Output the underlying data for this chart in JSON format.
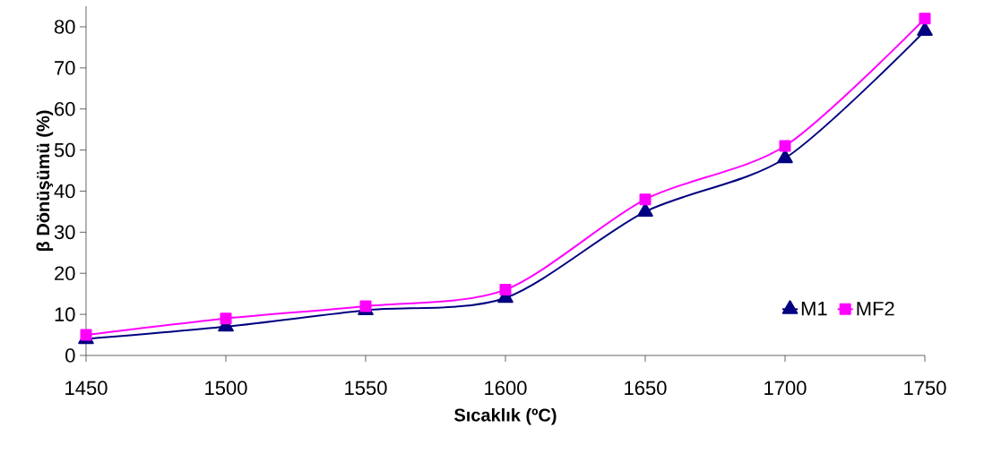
{
  "chart_data": {
    "type": "line",
    "xlabel": "Sıcaklık (ºC)",
    "ylabel": "β Dönüşümü (%)",
    "x": [
      1450,
      1500,
      1550,
      1600,
      1650,
      1700,
      1750
    ],
    "series": [
      {
        "name": "M1",
        "color": "#000080",
        "marker": "triangle",
        "values": [
          4,
          7,
          11,
          14,
          35,
          48,
          79
        ]
      },
      {
        "name": "MF2",
        "color": "#ff00ff",
        "marker": "square",
        "values": [
          5,
          9,
          12,
          16,
          38,
          51,
          82
        ]
      }
    ],
    "xlim": [
      1450,
      1750
    ],
    "xticks": [
      1450,
      1500,
      1550,
      1600,
      1650,
      1700,
      1750
    ],
    "ylim": [
      0,
      85
    ],
    "yticks": [
      0,
      10,
      20,
      30,
      40,
      50,
      60,
      70,
      80
    ],
    "grid": false,
    "legend": "bottom right",
    "line_style": "solid"
  }
}
